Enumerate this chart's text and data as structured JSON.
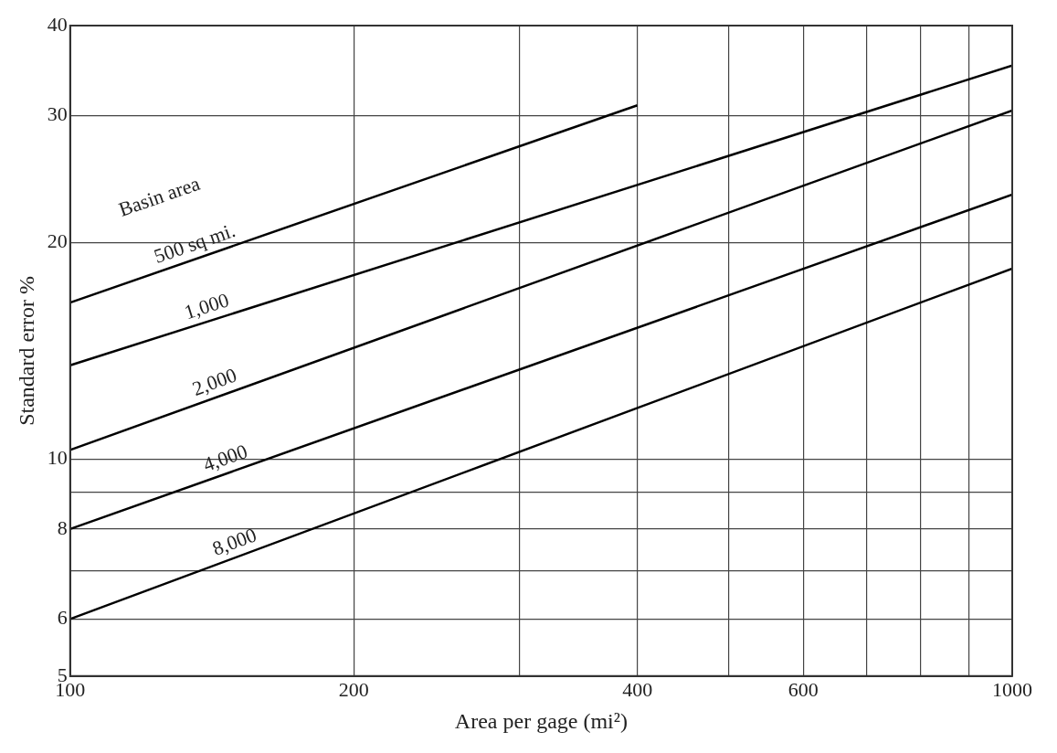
{
  "chart_data": {
    "type": "line",
    "xlabel": "Area per gage (mi²)",
    "ylabel": "Standard error %",
    "annotations": [
      "Basin area"
    ],
    "log": "xy",
    "grid": true,
    "legend": false,
    "marker": "none",
    "line_style": "solid",
    "xlim": [
      100,
      1000
    ],
    "ylim": [
      5,
      40
    ],
    "xticks": [
      100,
      200,
      {
        "value": 300,
        "label": null
      },
      400,
      {
        "value": 500,
        "label": null
      },
      600,
      {
        "value": 700,
        "label": null
      },
      {
        "value": 800,
        "label": null
      },
      {
        "value": 900,
        "label": null
      },
      1000
    ],
    "yticks": [
      5,
      6,
      {
        "value": 7,
        "label": null
      },
      8,
      {
        "value": 9,
        "label": null
      },
      10,
      20,
      30,
      40
    ],
    "series": [
      {
        "name": "500 sq mi.",
        "color": "#000000",
        "x": [
          100,
          400
        ],
        "values": [
          16.5,
          31
        ]
      },
      {
        "name": "1,000",
        "color": "#000000",
        "x": [
          100,
          1000
        ],
        "values": [
          13.5,
          35.2
        ]
      },
      {
        "name": "2,000",
        "color": "#000000",
        "x": [
          100,
          1000
        ],
        "values": [
          10.3,
          30.5
        ]
      },
      {
        "name": "4,000",
        "color": "#000000",
        "x": [
          100,
          1000
        ],
        "values": [
          8,
          23.3
        ]
      },
      {
        "name": "8,000",
        "color": "#000000",
        "x": [
          100,
          1000
        ],
        "values": [
          6,
          18.4
        ]
      }
    ]
  }
}
